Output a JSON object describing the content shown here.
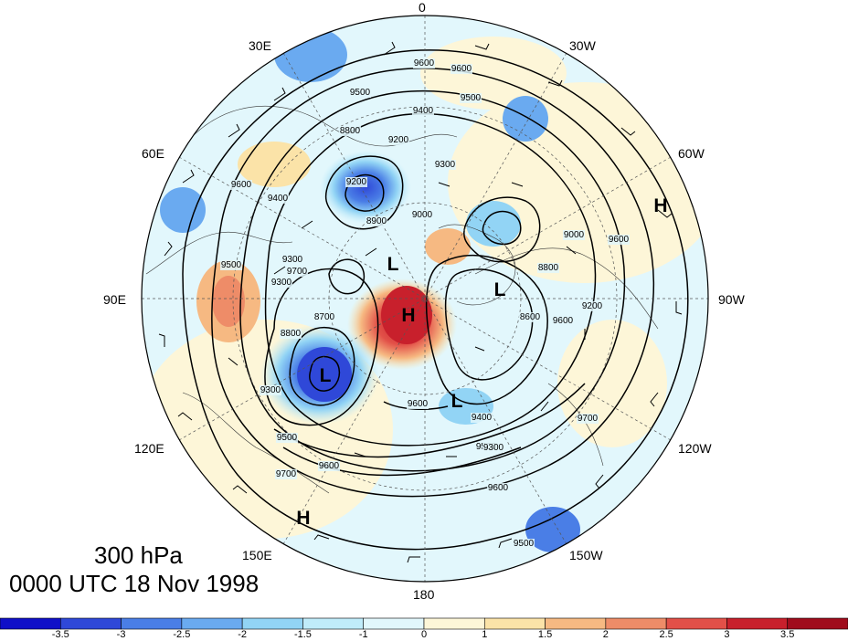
{
  "title": {
    "level": "300 hPa",
    "time": "0000 UTC 18 Nov 1998"
  },
  "longitude_labels": [
    "0",
    "30W",
    "60W",
    "90W",
    "120W",
    "150W",
    "180",
    "150E",
    "120E",
    "90E",
    "60E",
    "30E"
  ],
  "contour_labels": [
    "9600",
    "9600",
    "9500",
    "9400",
    "9300",
    "9200",
    "9500",
    "9400",
    "9300",
    "9700",
    "9300",
    "9200",
    "8800",
    "8900",
    "9000",
    "9600",
    "9500",
    "8700",
    "8800",
    "9300",
    "9500",
    "9600",
    "9700",
    "9600",
    "9500",
    "9400",
    "9300",
    "8600",
    "8800",
    "9000",
    "9500",
    "9600",
    "9600",
    "9200",
    "9700",
    "9600"
  ],
  "pressure_systems": [
    {
      "label": "H"
    },
    {
      "label": "L"
    },
    {
      "label": "H"
    },
    {
      "label": "L"
    },
    {
      "label": "L"
    },
    {
      "label": "L"
    },
    {
      "label": "H"
    }
  ],
  "colorbar": {
    "labels": [
      "-3.5",
      "-3",
      "-2.5",
      "-2",
      "-1.5",
      "-1",
      "0",
      "1",
      "1.5",
      "2",
      "2.5",
      "3",
      "3.5"
    ],
    "colors": [
      "#1010c8",
      "#2f48d8",
      "#4a7ee6",
      "#6aaaf0",
      "#92d4f5",
      "#c0ecfa",
      "#e2f7fc",
      "#fdf6d8",
      "#fbe3a8",
      "#f6b982",
      "#ee8c68",
      "#e25048",
      "#c8202c",
      "#a00c1c"
    ]
  }
}
